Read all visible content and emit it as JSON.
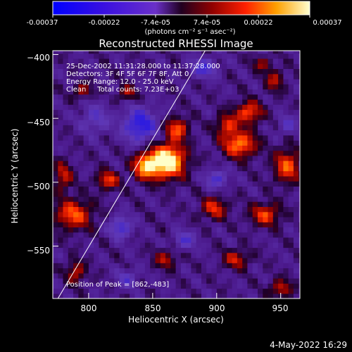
{
  "colorbar": {
    "tick_labels": [
      "-0.00037",
      "-0.00022",
      "-7.4e-05",
      "7.4e-05",
      "0.00022",
      "0.00037"
    ],
    "units_label": "(photons cm⁻² s⁻¹ asec⁻²)",
    "range": [
      -0.00037,
      0.00037
    ]
  },
  "chart_data": {
    "type": "heatmap",
    "title": "Reconstructed RHESSI Image",
    "xlabel": "Heliocentric X (arcsec)",
    "ylabel": "Heliocentric Y (arcsec)",
    "xlim": [
      772,
      965
    ],
    "ylim": [
      -591,
      -397
    ],
    "x_ticks": [
      800,
      850,
      900,
      950
    ],
    "y_ticks": [
      -550,
      -500,
      -450,
      -400
    ],
    "x_tick_labels": [
      "800",
      "850",
      "900",
      "950"
    ],
    "y_tick_labels": [
      "−550",
      "−500",
      "−450",
      "−400"
    ],
    "limb_line": [
      [
        776,
        -591
      ],
      [
        891,
        -397
      ]
    ],
    "peak": {
      "x": 862,
      "y": -483
    },
    "sources": [
      {
        "x": 862,
        "y": -483,
        "amp": 1.0,
        "sx": 9,
        "sy": 9
      },
      {
        "x": 845,
        "y": -487,
        "amp": 0.75,
        "sx": 7,
        "sy": 7
      },
      {
        "x": 869,
        "y": -458,
        "amp": 0.55,
        "sx": 6,
        "sy": 6
      },
      {
        "x": 918,
        "y": -470,
        "amp": 0.65,
        "sx": 9,
        "sy": 7
      },
      {
        "x": 925,
        "y": -445,
        "amp": 0.55,
        "sx": 7,
        "sy": 6
      },
      {
        "x": 908,
        "y": -455,
        "amp": 0.45,
        "sx": 6,
        "sy": 6
      },
      {
        "x": 955,
        "y": -487,
        "amp": 0.55,
        "sx": 7,
        "sy": 9
      },
      {
        "x": 938,
        "y": -525,
        "amp": 0.5,
        "sx": 8,
        "sy": 6
      },
      {
        "x": 898,
        "y": -520,
        "amp": 0.45,
        "sx": 7,
        "sy": 6
      },
      {
        "x": 788,
        "y": -525,
        "amp": 0.55,
        "sx": 10,
        "sy": 8
      },
      {
        "x": 780,
        "y": -495,
        "amp": 0.4,
        "sx": 5,
        "sy": 8
      },
      {
        "x": 815,
        "y": -498,
        "amp": 0.5,
        "sx": 6,
        "sy": 5
      },
      {
        "x": 790,
        "y": -570,
        "amp": 0.4,
        "sx": 5,
        "sy": 6
      },
      {
        "x": 795,
        "y": -428,
        "amp": 0.35,
        "sx": 5,
        "sy": 4
      },
      {
        "x": 830,
        "y": -430,
        "amp": 0.35,
        "sx": 5,
        "sy": 4
      },
      {
        "x": 860,
        "y": -560,
        "amp": 0.35,
        "sx": 6,
        "sy": 5
      },
      {
        "x": 915,
        "y": -560,
        "amp": 0.4,
        "sx": 7,
        "sy": 5
      },
      {
        "x": 950,
        "y": -583,
        "amp": 0.4,
        "sx": 6,
        "sy": 5
      },
      {
        "x": 945,
        "y": -420,
        "amp": 0.35,
        "sx": 5,
        "sy": 6
      },
      {
        "x": 935,
        "y": -407,
        "amp": 0.3,
        "sx": 5,
        "sy": 4
      },
      {
        "x": 840,
        "y": -455,
        "amp": -0.6,
        "sx": 9,
        "sy": 9
      },
      {
        "x": 825,
        "y": -535,
        "amp": -0.45,
        "sx": 6,
        "sy": 6
      },
      {
        "x": 890,
        "y": -410,
        "amp": -0.45,
        "sx": 7,
        "sy": 5
      },
      {
        "x": 900,
        "y": -497,
        "amp": -0.4,
        "sx": 6,
        "sy": 5
      },
      {
        "x": 805,
        "y": -450,
        "amp": -0.3,
        "sx": 8,
        "sy": 8
      },
      {
        "x": 875,
        "y": -545,
        "amp": -0.35,
        "sx": 6,
        "sy": 5
      },
      {
        "x": 955,
        "y": -455,
        "amp": -0.3,
        "sx": 5,
        "sy": 5
      },
      {
        "x": 830,
        "y": -575,
        "amp": -0.3,
        "sx": 6,
        "sy": 5
      }
    ],
    "annotations": [
      "25-Dec-2002 11:31:28.000 to 11:37:28.000",
      "Detectors: 3F 4F 5F 6F 7F 8F, Att 0",
      "Energy Range: 12.0 - 25.0 keV",
      "Clean     Total counts: 7.23E+03"
    ],
    "peak_label": "Position of Peak = [862,-483]"
  },
  "footer": {
    "timestamp": "4-May-2022 16:29"
  }
}
